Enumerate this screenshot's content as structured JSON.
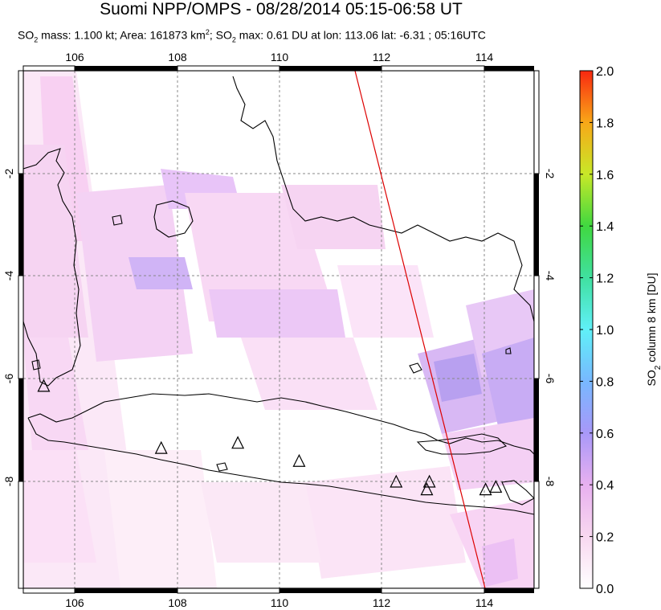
{
  "title": "Suomi NPP/OMPS - 08/28/2014 05:15-06:58 UT",
  "subtitle": {
    "p1": "SO",
    "p1_sub": "2",
    "p2": " mass: 1.100 kt; Area: 161873 km",
    "p2_sup": "2",
    "p3": "; SO",
    "p3_sub": "2",
    "p4": " max: 0.61 DU at lon: 113.06 lat: -6.31 ; 05:16UTC"
  },
  "map": {
    "lon_range": [
      105,
      115
    ],
    "lat_range": [
      -10,
      0
    ],
    "lon_ticks": [
      106,
      108,
      110,
      112,
      114
    ],
    "lat_ticks": [
      -2,
      -4,
      -6,
      -8
    ],
    "lon_labels": [
      "106",
      "108",
      "110",
      "112",
      "114"
    ],
    "lat_labels": [
      "-2",
      "-4",
      "-6",
      "-8"
    ],
    "volcano_markers": [
      {
        "lon": 105.4,
        "lat": -6.1
      },
      {
        "lon": 107.7,
        "lat": -7.3
      },
      {
        "lon": 109.2,
        "lat": -7.2
      },
      {
        "lon": 110.4,
        "lat": -7.55
      },
      {
        "lon": 112.3,
        "lat": -7.95
      },
      {
        "lon": 112.95,
        "lat": -7.95
      },
      {
        "lon": 112.9,
        "lat": -8.1
      },
      {
        "lon": 114.05,
        "lat": -8.1
      },
      {
        "lon": 114.25,
        "lat": -8.05
      }
    ],
    "orbit_line": {
      "start_lon": 111.5,
      "start_lat": 0.0,
      "end_lon": 114.0,
      "end_lat": -10.0,
      "color": "#dd0000"
    }
  },
  "colorbar": {
    "label": "SO2 column 8 km [DU]",
    "label_main": "SO",
    "label_sub": "2",
    "label_rest": " column 8 km [DU]",
    "ticks": [
      "0.0",
      "0.2",
      "0.4",
      "0.6",
      "0.8",
      "1.0",
      "1.2",
      "1.4",
      "1.6",
      "1.8",
      "2.0"
    ],
    "range": [
      0.0,
      2.0
    ]
  },
  "colors": {
    "low": "#ffffff",
    "pink": "#fad2f0",
    "violet": "#c8a0f5",
    "blue": "#8c8cf0",
    "orbit": "#dd0000"
  }
}
